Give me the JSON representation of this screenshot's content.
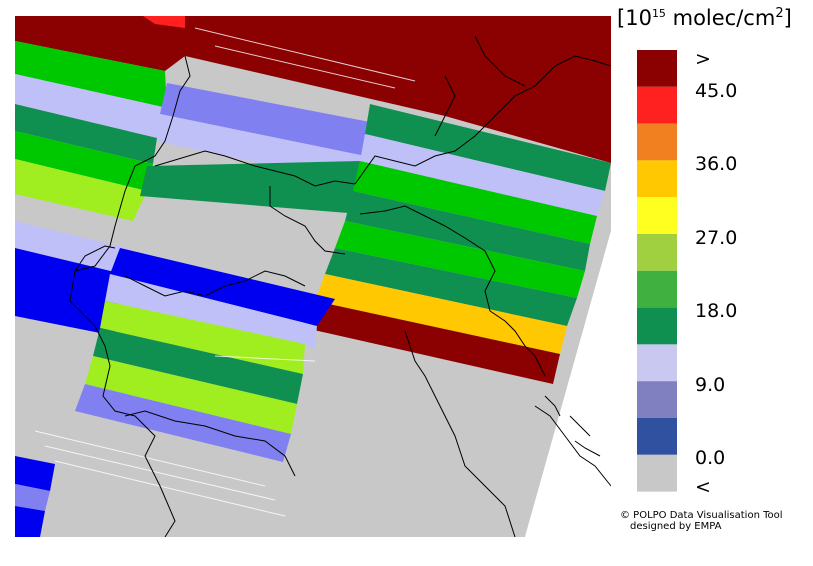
{
  "legend": {
    "unit": "molec/cm",
    "scale_base": "10",
    "scale_exp": "15",
    "area_exp": "2",
    "upper_label": ">",
    "lower_label": "<",
    "tick_labels": [
      "45.0",
      "36.0",
      "27.0",
      "18.0",
      "9.0",
      "0.0"
    ],
    "color_classes": [
      "#8b0000",
      "#ff2020",
      "#f08020",
      "#ffc800",
      "#ffff20",
      "#a0d040",
      "#40b040",
      "#109050",
      "#c8c8f0",
      "#8080c0",
      "#3050a0",
      "#c8c8c8"
    ]
  },
  "credits": {
    "line1": "© POLPO Data Visualisation Tool",
    "line2": "designed by EMPA"
  },
  "map": {
    "no_data_color": "#c8c8c8",
    "border_color": "#000000"
  }
}
